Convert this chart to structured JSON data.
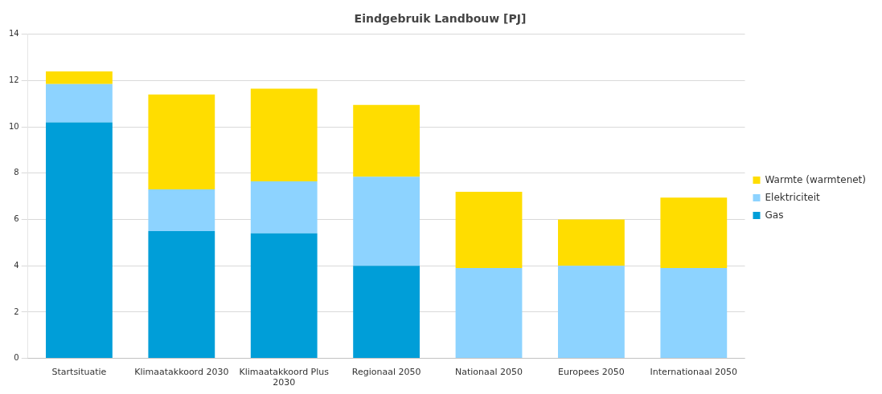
{
  "chart_data": {
    "type": "bar",
    "title": "Eindgebruik Landbouw [PJ]",
    "stacked": true,
    "categories": [
      "Startsituatie",
      "Klimaatakkoord 2030",
      "Klimaatakkoord Plus 2030",
      "Regionaal 2050",
      "Nationaal 2050",
      "Europees 2050",
      "Internationaal 2050"
    ],
    "series": [
      {
        "name": "Gas",
        "color": "#009ed8",
        "values": [
          10.2,
          5.5,
          5.4,
          4.0,
          0,
          0,
          0
        ]
      },
      {
        "name": "Elektriciteit",
        "color": "#8dd3ff",
        "values": [
          1.65,
          1.8,
          2.25,
          3.85,
          3.9,
          4.0,
          3.9
        ]
      },
      {
        "name": "Warmte (warmtenet)",
        "color": "#ffdd00",
        "values": [
          0.55,
          4.1,
          4.0,
          3.1,
          3.3,
          2.0,
          3.05
        ]
      }
    ],
    "ylim": [
      0,
      14
    ],
    "yticks": [
      0,
      2,
      4,
      6,
      8,
      10,
      12,
      14
    ],
    "grid": "y",
    "legend": "right"
  }
}
